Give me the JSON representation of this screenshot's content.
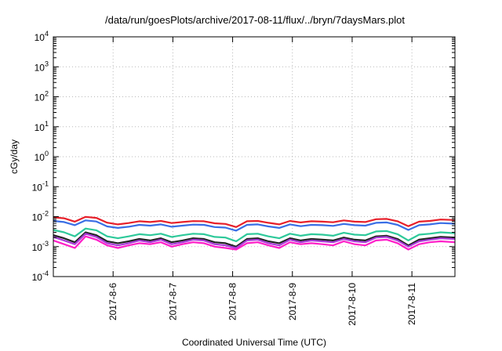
{
  "chart_data": {
    "type": "line",
    "title": "/data/run/goesPlots/archive/2017-08-11/flux/../bryn/7daysMars.plot",
    "xlabel": "Coordinated Universal Time (UTC)",
    "ylabel": "cGy/day",
    "yscale": "log",
    "ylim": [
      0.0001,
      10000
    ],
    "xlim": [
      0,
      6.72
    ],
    "grid": true,
    "legend": "none",
    "x_ticks": [
      {
        "x": 1,
        "label": "2017-8-6"
      },
      {
        "x": 2,
        "label": "2017-8-7"
      },
      {
        "x": 3,
        "label": "2017-8-8"
      },
      {
        "x": 4,
        "label": "2017-8-9"
      },
      {
        "x": 5,
        "label": "2017-8-10"
      },
      {
        "x": 6,
        "label": "2017-8-11"
      }
    ],
    "y_ticks": [
      {
        "exp": 4,
        "base": "10",
        "power": "4"
      },
      {
        "exp": 3,
        "base": "10",
        "power": "3"
      },
      {
        "exp": 2,
        "base": "10",
        "power": "2"
      },
      {
        "exp": 1,
        "base": "10",
        "power": "1"
      },
      {
        "exp": 0,
        "base": "10",
        "power": "0"
      },
      {
        "exp": -1,
        "base": "10",
        "power": "-1"
      },
      {
        "exp": -2,
        "base": "10",
        "power": "-2"
      },
      {
        "exp": -3,
        "base": "10",
        "power": "-3"
      },
      {
        "exp": -4,
        "base": "10",
        "power": "-4"
      }
    ],
    "x": [
      0.0,
      0.18,
      0.36,
      0.54,
      0.72,
      0.9,
      1.08,
      1.26,
      1.44,
      1.62,
      1.8,
      1.98,
      2.16,
      2.34,
      2.52,
      2.7,
      2.88,
      3.06,
      3.24,
      3.42,
      3.6,
      3.78,
      3.96,
      4.14,
      4.32,
      4.5,
      4.68,
      4.86,
      5.04,
      5.22,
      5.4,
      5.58,
      5.76,
      5.94,
      6.12,
      6.3,
      6.48,
      6.72
    ],
    "series": [
      {
        "color": "#e8202a",
        "values": [
          0.0095,
          0.0088,
          0.0068,
          0.0098,
          0.0091,
          0.0063,
          0.0055,
          0.0061,
          0.007,
          0.0066,
          0.0072,
          0.0061,
          0.0066,
          0.0071,
          0.007,
          0.006,
          0.0057,
          0.0045,
          0.007,
          0.0072,
          0.0062,
          0.0055,
          0.0072,
          0.0064,
          0.007,
          0.0068,
          0.0065,
          0.0075,
          0.0068,
          0.0066,
          0.0082,
          0.0084,
          0.007,
          0.0048,
          0.0068,
          0.0072,
          0.008,
          0.0077
        ]
      },
      {
        "color": "#3a6fe6",
        "values": [
          0.0072,
          0.0066,
          0.0052,
          0.0075,
          0.0069,
          0.0047,
          0.0042,
          0.0046,
          0.0053,
          0.005,
          0.0055,
          0.0046,
          0.005,
          0.0054,
          0.0053,
          0.0045,
          0.0043,
          0.0034,
          0.0053,
          0.0055,
          0.0047,
          0.0042,
          0.0055,
          0.0048,
          0.0053,
          0.0052,
          0.0049,
          0.0057,
          0.0052,
          0.005,
          0.0062,
          0.0064,
          0.0053,
          0.0036,
          0.0052,
          0.0055,
          0.0061,
          0.0058
        ]
      },
      {
        "color": "#2ec99a",
        "values": [
          0.0036,
          0.003,
          0.0022,
          0.004,
          0.0035,
          0.0022,
          0.0019,
          0.0022,
          0.0026,
          0.0024,
          0.0027,
          0.0021,
          0.0024,
          0.0027,
          0.0026,
          0.0021,
          0.002,
          0.0015,
          0.0026,
          0.0027,
          0.0022,
          0.0019,
          0.0027,
          0.0023,
          0.0026,
          0.0025,
          0.0023,
          0.0029,
          0.0025,
          0.0024,
          0.0032,
          0.0033,
          0.0026,
          0.0016,
          0.0025,
          0.0027,
          0.003,
          0.0028
        ]
      },
      {
        "color": "#222222",
        "values": [
          0.0024,
          0.0019,
          0.0014,
          0.003,
          0.0024,
          0.0015,
          0.0013,
          0.0015,
          0.0018,
          0.0016,
          0.0019,
          0.0014,
          0.0016,
          0.0019,
          0.0018,
          0.0014,
          0.0013,
          0.001,
          0.0018,
          0.0019,
          0.0015,
          0.0013,
          0.0019,
          0.0016,
          0.0018,
          0.0017,
          0.0016,
          0.002,
          0.0017,
          0.0016,
          0.0022,
          0.0023,
          0.0018,
          0.0011,
          0.0017,
          0.0019,
          0.0021,
          0.002
        ]
      },
      {
        "color": "#a83ad8",
        "values": [
          0.0021,
          0.0016,
          0.0012,
          0.0027,
          0.0021,
          0.0013,
          0.0011,
          0.0013,
          0.0016,
          0.0014,
          0.0017,
          0.0012,
          0.0014,
          0.0017,
          0.0016,
          0.0012,
          0.0011,
          0.0009,
          0.0016,
          0.0017,
          0.0013,
          0.0011,
          0.0017,
          0.0014,
          0.0016,
          0.0015,
          0.0014,
          0.0018,
          0.0015,
          0.0014,
          0.002,
          0.0021,
          0.0016,
          0.001,
          0.0015,
          0.0017,
          0.0019,
          0.0018
        ]
      },
      {
        "color": "#ff1fc8",
        "values": [
          0.0016,
          0.0012,
          0.0009,
          0.0022,
          0.0017,
          0.0011,
          0.0009,
          0.0011,
          0.0013,
          0.0012,
          0.0014,
          0.001,
          0.0012,
          0.0014,
          0.0013,
          0.001,
          0.0009,
          0.0008,
          0.0013,
          0.0014,
          0.0011,
          0.0009,
          0.0014,
          0.0012,
          0.0013,
          0.0012,
          0.0011,
          0.0015,
          0.0012,
          0.0011,
          0.0016,
          0.0017,
          0.0013,
          0.0008,
          0.0012,
          0.0014,
          0.0015,
          0.0014
        ]
      }
    ]
  }
}
